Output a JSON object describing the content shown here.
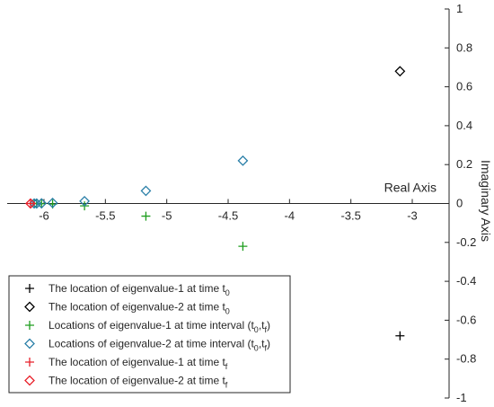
{
  "chart_data": {
    "type": "scatter",
    "xlabel": "Real Axis",
    "ylabel": "Imaginary Axis",
    "xlim": [
      -6.3,
      -2.7
    ],
    "ylim": [
      -1,
      1
    ],
    "x_ticks": [
      -6,
      -5.5,
      -5,
      -4.5,
      -4,
      -3.5,
      -3
    ],
    "x_tick_labels": [
      "-6",
      "-5.5",
      "-5",
      "-4.5",
      "-4",
      "-3.5",
      "-3"
    ],
    "y_ticks": [
      -1,
      -0.8,
      -0.6,
      -0.4,
      -0.2,
      0,
      0.2,
      0.4,
      0.6,
      0.8,
      1
    ],
    "y_tick_labels": [
      "-1",
      "-0.8",
      "-0.6",
      "-0.4",
      "-0.2",
      "0",
      "0.2",
      "0.4",
      "0.6",
      "0.8",
      "1"
    ],
    "grid": false,
    "legend_position": "bottom-left",
    "series": [
      {
        "name": "The location of eigenvalue-1 at time t",
        "name_sub": "0",
        "marker": "plus",
        "color": "#000000",
        "points": [
          [
            -3.1,
            -0.68
          ]
        ]
      },
      {
        "name": "The location of eigenvalue-2 at time t",
        "name_sub": "0",
        "marker": "diamond",
        "color": "#000000",
        "points": [
          [
            -3.1,
            0.68
          ]
        ]
      },
      {
        "name": "Locations of eigenvalue-1 at time interval (t",
        "name_sub": "0",
        "name_mid": ",t",
        "name_sub2": "f",
        "name_end": ")",
        "marker": "plus",
        "color": "#1e9e1e",
        "points": [
          [
            -4.38,
            -0.22
          ],
          [
            -5.17,
            -0.065
          ],
          [
            -5.67,
            -0.012
          ],
          [
            -5.93,
            -0.003
          ],
          [
            -6.02,
            -0.001
          ],
          [
            -6.06,
            0
          ],
          [
            -6.08,
            0
          ]
        ]
      },
      {
        "name": "Locations of eigenvalue-2 at time interval (t",
        "name_sub": "0",
        "name_mid": ",t",
        "name_sub2": "f",
        "name_end": ")",
        "marker": "diamond",
        "color": "#2a7fa8",
        "points": [
          [
            -4.38,
            0.22
          ],
          [
            -5.17,
            0.065
          ],
          [
            -5.67,
            0.012
          ],
          [
            -5.93,
            0.003
          ],
          [
            -6.02,
            0.001
          ],
          [
            -6.06,
            0
          ],
          [
            -6.08,
            0
          ]
        ]
      },
      {
        "name": "The location of eigenvalue-1 at time t",
        "name_sub": "f",
        "marker": "plus",
        "color": "#e8202a",
        "points": [
          [
            -6.11,
            0
          ]
        ]
      },
      {
        "name": "The location of eigenvalue-2 at time t",
        "name_sub": "f",
        "marker": "diamond",
        "color": "#e8202a",
        "points": [
          [
            -6.11,
            0
          ]
        ]
      }
    ]
  }
}
